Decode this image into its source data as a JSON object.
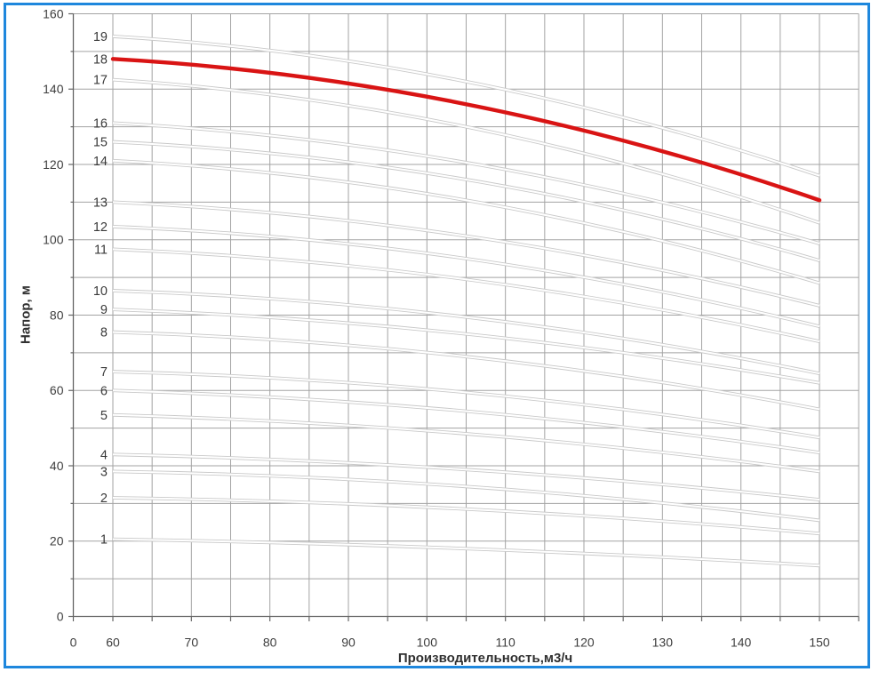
{
  "chart_data": {
    "type": "line",
    "title": "",
    "xlabel": "Производительность,м3/ч",
    "ylabel": "Напор, м",
    "x_ticks": [
      0,
      60,
      70,
      80,
      90,
      100,
      110,
      120,
      130,
      140,
      150
    ],
    "y_ticks": [
      0,
      20,
      40,
      60,
      80,
      100,
      120,
      140,
      160
    ],
    "x_minor_grid_step": 5,
    "y_grid_step": 10,
    "x_axis_break_between_0_and_60": true,
    "x_plot_range": [
      60,
      150
    ],
    "x_grid_right_bound": 155,
    "ylim": [
      0,
      160
    ],
    "grid": true,
    "legend": "none",
    "sample_q": [
      60,
      105,
      150
    ],
    "series": [
      {
        "label": "1",
        "h": [
          20.5,
          18.0,
          13.5
        ],
        "highlight": false
      },
      {
        "label": "2",
        "h": [
          31.5,
          28.5,
          22.0
        ],
        "highlight": false
      },
      {
        "label": "3",
        "h": [
          38.5,
          34.5,
          25.5
        ],
        "highlight": false
      },
      {
        "label": "4",
        "h": [
          43.0,
          39.0,
          31.0
        ],
        "highlight": false
      },
      {
        "label": "5",
        "h": [
          53.5,
          48.5,
          38.5
        ],
        "highlight": false
      },
      {
        "label": "6",
        "h": [
          60.0,
          54.5,
          43.5
        ],
        "highlight": false
      },
      {
        "label": "7",
        "h": [
          65.0,
          59.5,
          47.5
        ],
        "highlight": false
      },
      {
        "label": "8",
        "h": [
          75.5,
          69.0,
          55.0
        ],
        "highlight": false
      },
      {
        "label": "9",
        "h": [
          81.5,
          75.0,
          62.0
        ],
        "highlight": false
      },
      {
        "label": "10",
        "h": [
          86.5,
          79.5,
          64.5
        ],
        "highlight": false
      },
      {
        "label": "11",
        "h": [
          97.5,
          89.5,
          73.0
        ],
        "highlight": false
      },
      {
        "label": "12",
        "h": [
          103.5,
          95.0,
          77.0
        ],
        "highlight": false
      },
      {
        "label": "13",
        "h": [
          110.0,
          101.0,
          82.5
        ],
        "highlight": false
      },
      {
        "label": "14",
        "h": [
          121.0,
          110.5,
          88.5
        ],
        "highlight": false
      },
      {
        "label": "15",
        "h": [
          126.0,
          116.0,
          94.5
        ],
        "highlight": false
      },
      {
        "label": "16",
        "h": [
          131.0,
          120.5,
          99.0
        ],
        "highlight": false
      },
      {
        "label": "17",
        "h": [
          142.5,
          130.0,
          104.5
        ],
        "highlight": false
      },
      {
        "label": "18",
        "h": [
          148.0,
          136.0,
          110.5
        ],
        "highlight": true
      },
      {
        "label": "19",
        "h": [
          154.0,
          142.0,
          117.0
        ],
        "highlight": false
      }
    ],
    "colors": {
      "background": "#ffffff",
      "frame_border": "#1e87dd",
      "grid": "#a3a3a3",
      "axis": "#666666",
      "text": "#3d3d3d",
      "curve_outline": "#c9c9c9",
      "curve_core": "#ffffff",
      "highlight_curve": "#d91414"
    }
  }
}
